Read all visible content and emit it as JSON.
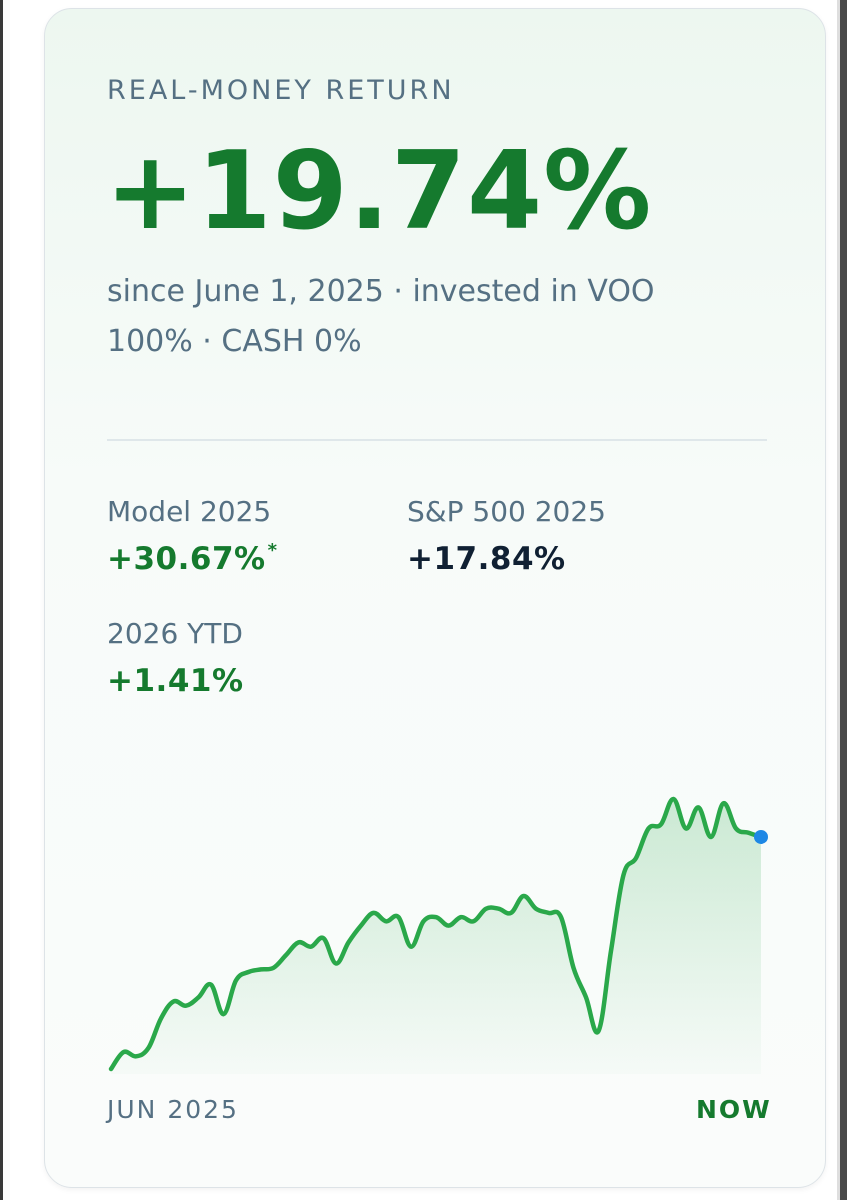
{
  "card": {
    "eyebrow": "REAL-MONEY RETURN",
    "headline_return": "+19.74%",
    "subtitle": "since June 1, 2025 · invested in VOO 100% · CASH 0%"
  },
  "stats": {
    "model": {
      "label": "Model 2025",
      "value": "+30.67%",
      "footnote_mark": "*"
    },
    "sp500": {
      "label": "S&P 500 2025",
      "value": "+17.84%"
    },
    "ytd": {
      "label": "2026 YTD",
      "value": "+1.41%"
    }
  },
  "colors": {
    "positive": "#157a2e",
    "line": "#2aa84a",
    "endpoint": "#1e88e5",
    "muted_text": "#557083"
  },
  "chart_data": {
    "type": "area",
    "xlabel_start": "JUN 2025",
    "xlabel_end": "NOW",
    "values": [
      0.0,
      2.0,
      1.5,
      2.5,
      6.0,
      8.0,
      7.5,
      8.5,
      10.0,
      6.5,
      10.5,
      11.5,
      11.8,
      12.0,
      13.5,
      15.0,
      14.5,
      15.5,
      12.5,
      15.0,
      17.0,
      18.5,
      17.5,
      18.0,
      14.5,
      17.5,
      18.0,
      17.0,
      18.0,
      17.5,
      19.0,
      19.0,
      18.5,
      20.5,
      19.0,
      18.5,
      18.0,
      12.0,
      8.5,
      4.5,
      14.0,
      23.0,
      25.0,
      28.5,
      29.0,
      32.0,
      28.5,
      31.0,
      27.5,
      31.5,
      28.5,
      28.0,
      27.5
    ]
  }
}
